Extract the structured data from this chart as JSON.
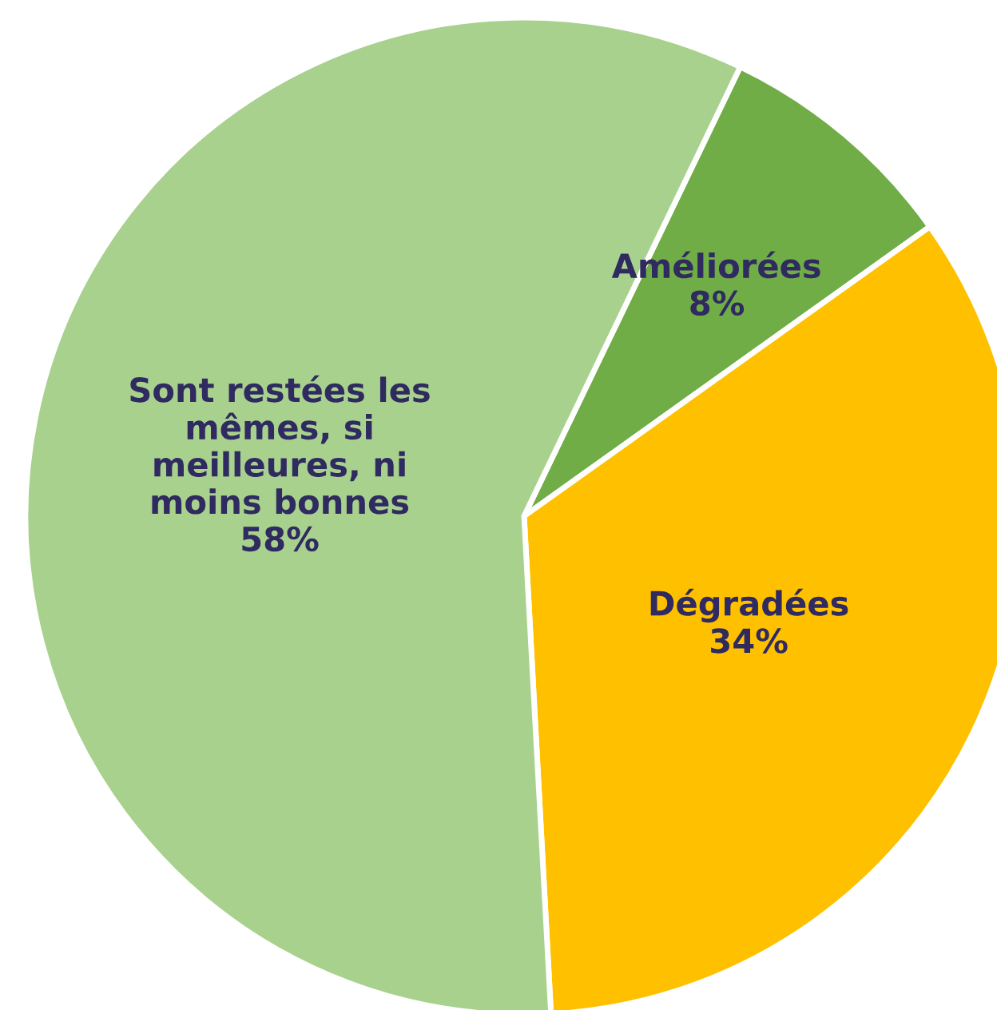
{
  "chart_data": {
    "type": "pie",
    "categories": [
      "Améliorées",
      "Dégradées",
      "Sont restées les\nmêmes, si\nmeilleures, ni\nmoins bonnes"
    ],
    "values": [
      8,
      34,
      58
    ],
    "colors": [
      "#70ad47",
      "#ffc000",
      "#a9d18e"
    ],
    "value_labels": [
      "8%",
      "34%",
      "58%"
    ]
  }
}
